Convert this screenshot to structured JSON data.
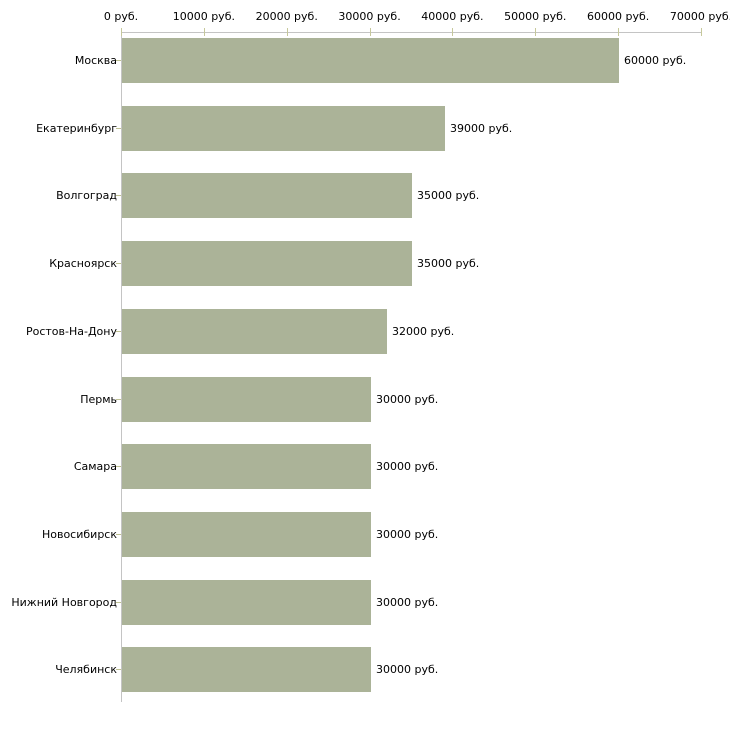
{
  "chart_data": {
    "type": "bar",
    "orientation": "horizontal",
    "title": "",
    "unit": "руб.",
    "categories": [
      "Москва",
      "Екатеринбург",
      "Волгоград",
      "Красноярск",
      "Ростов-На-Дону",
      "Пермь",
      "Самара",
      "Новосибирск",
      "Нижний Новгород",
      "Челябинск"
    ],
    "values": [
      60000,
      39000,
      35000,
      35000,
      32000,
      30000,
      30000,
      30000,
      30000,
      30000
    ],
    "value_labels": [
      "60000 руб.",
      "39000 руб.",
      "35000 руб.",
      "35000 руб.",
      "32000 руб.",
      "30000 руб.",
      "30000 руб.",
      "30000 руб.",
      "30000 руб.",
      "30000 руб."
    ],
    "x_axis": {
      "position": "top",
      "min": 0,
      "max": 70000,
      "tick_values": [
        0,
        10000,
        20000,
        30000,
        40000,
        50000,
        60000,
        70000
      ],
      "tick_labels": [
        "0 руб.",
        "10000 руб.",
        "20000 руб.",
        "30000 руб.",
        "40000 руб.",
        "50000 руб.",
        "60000 руб.",
        "70000 руб."
      ]
    },
    "legend": {
      "visible": false
    },
    "grid": {
      "visible": false
    },
    "colors": {
      "bar_fill": "#abb398",
      "axis_line": "#c4c4c4",
      "tick_mark": "#c6c89b",
      "category_tick_mark": "#bfc193",
      "text": "#000000",
      "background": "#ffffff"
    }
  }
}
